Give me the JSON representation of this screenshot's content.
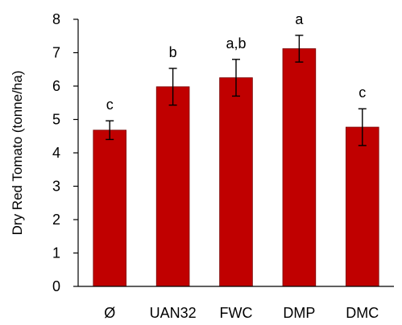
{
  "chart_data": {
    "type": "bar",
    "categories": [
      "Ø",
      "UAN32",
      "FWC",
      "DMP",
      "DMC"
    ],
    "values": [
      4.68,
      5.98,
      6.25,
      7.12,
      4.77
    ],
    "errors": [
      0.28,
      0.55,
      0.55,
      0.4,
      0.55
    ],
    "significance_letters": [
      "c",
      "b",
      "a,b",
      "a",
      "c"
    ],
    "title": "",
    "xlabel": "",
    "ylabel": "Dry Red Tomato  (tonne/ha)",
    "ylim": [
      0,
      8
    ],
    "yticks": [
      0,
      1,
      2,
      3,
      4,
      5,
      6,
      7,
      8
    ],
    "grid": false,
    "legend": "none",
    "bar_color": "#C00000",
    "bar_edge_color": "#7A0000",
    "axis_color": "#000000"
  }
}
